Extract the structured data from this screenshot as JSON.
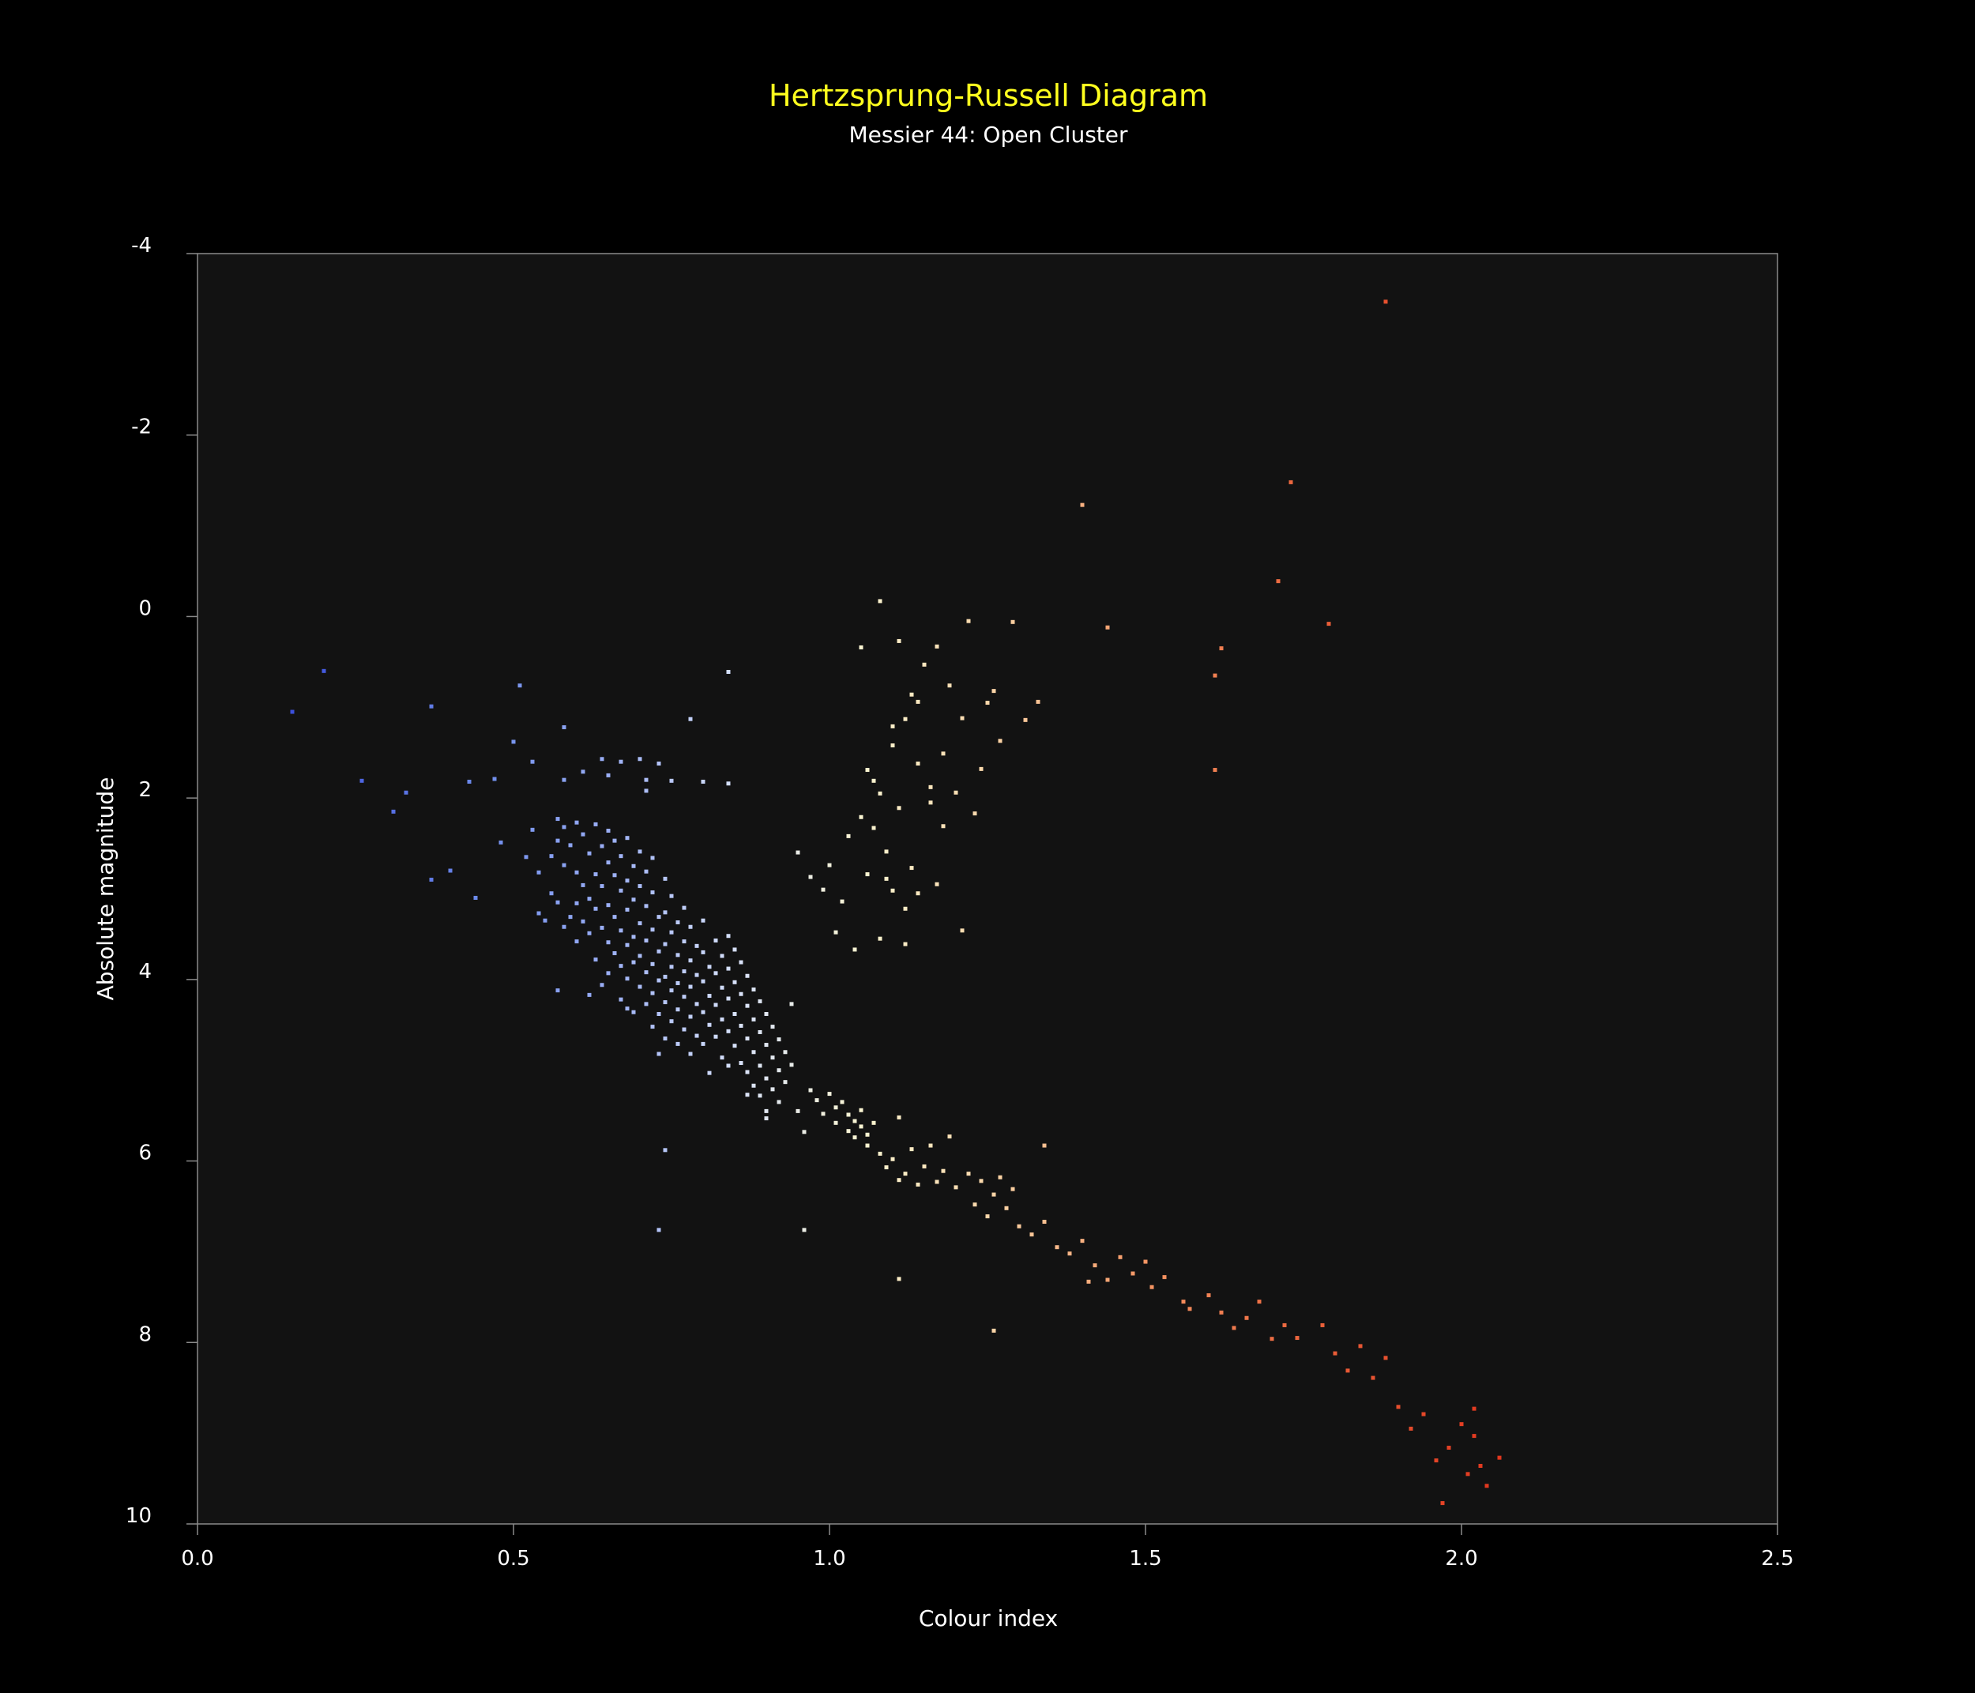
{
  "chart_data": {
    "type": "scatter",
    "title": "Hertzsprung-Russell Diagram",
    "subtitle": "Messier 44: Open Cluster",
    "xlabel": "Colour index",
    "ylabel": "Absolute magnitude",
    "xlim": [
      0.0,
      2.5
    ],
    "ylim": [
      -4,
      10
    ],
    "y_inverted": true,
    "grid": false,
    "legend": "none",
    "x_ticks": [
      "0.0",
      "0.5",
      "1.0",
      "1.5",
      "2.0",
      "2.5"
    ],
    "y_ticks": [
      "-4",
      "-2",
      "0",
      "2",
      "4",
      "6",
      "8",
      "10"
    ],
    "colors": {
      "background": "#000000",
      "plot_background": "#121212",
      "title": "#ffff1e",
      "text": "#ffffff",
      "axis": "#8a8a8a"
    },
    "points": [
      [
        0.15,
        1.05
      ],
      [
        0.2,
        0.6
      ],
      [
        0.26,
        1.81
      ],
      [
        0.31,
        2.15
      ],
      [
        0.33,
        1.94
      ],
      [
        0.37,
        0.99
      ],
      [
        0.37,
        2.9
      ],
      [
        0.4,
        2.8
      ],
      [
        0.43,
        1.82
      ],
      [
        0.44,
        3.1
      ],
      [
        0.47,
        1.79
      ],
      [
        0.48,
        2.49
      ],
      [
        0.51,
        0.76
      ],
      [
        0.5,
        1.38
      ],
      [
        0.53,
        1.6
      ],
      [
        0.58,
        1.8
      ],
      [
        0.58,
        1.22
      ],
      [
        0.61,
        1.71
      ],
      [
        0.64,
        1.57
      ],
      [
        0.65,
        1.75
      ],
      [
        0.67,
        1.6
      ],
      [
        0.7,
        1.57
      ],
      [
        0.71,
        1.8
      ],
      [
        0.73,
        1.62
      ],
      [
        0.75,
        1.81
      ],
      [
        0.78,
        1.13
      ],
      [
        0.8,
        1.82
      ],
      [
        0.84,
        0.61
      ],
      [
        0.84,
        1.84
      ],
      [
        0.71,
        1.92
      ],
      [
        0.52,
        2.65
      ],
      [
        0.53,
        2.35
      ],
      [
        0.54,
        2.82
      ],
      [
        0.54,
        3.27
      ],
      [
        0.55,
        3.35
      ],
      [
        0.56,
        2.64
      ],
      [
        0.56,
        3.05
      ],
      [
        0.57,
        2.23
      ],
      [
        0.57,
        2.47
      ],
      [
        0.57,
        3.15
      ],
      [
        0.58,
        2.32
      ],
      [
        0.58,
        2.74
      ],
      [
        0.58,
        3.42
      ],
      [
        0.59,
        2.52
      ],
      [
        0.59,
        3.31
      ],
      [
        0.6,
        2.27
      ],
      [
        0.6,
        2.82
      ],
      [
        0.6,
        3.16
      ],
      [
        0.6,
        3.58
      ],
      [
        0.61,
        2.4
      ],
      [
        0.61,
        2.96
      ],
      [
        0.61,
        3.36
      ],
      [
        0.62,
        2.61
      ],
      [
        0.62,
        3.11
      ],
      [
        0.62,
        3.49
      ],
      [
        0.63,
        2.29
      ],
      [
        0.63,
        2.84
      ],
      [
        0.63,
        3.22
      ],
      [
        0.63,
        3.78
      ],
      [
        0.64,
        2.53
      ],
      [
        0.64,
        2.97
      ],
      [
        0.64,
        3.43
      ],
      [
        0.64,
        4.06
      ],
      [
        0.65,
        2.36
      ],
      [
        0.65,
        2.71
      ],
      [
        0.65,
        3.18
      ],
      [
        0.65,
        3.59
      ],
      [
        0.65,
        3.93
      ],
      [
        0.66,
        2.47
      ],
      [
        0.66,
        2.85
      ],
      [
        0.66,
        3.31
      ],
      [
        0.66,
        3.71
      ],
      [
        0.67,
        2.64
      ],
      [
        0.67,
        3.02
      ],
      [
        0.67,
        3.46
      ],
      [
        0.67,
        3.85
      ],
      [
        0.67,
        4.22
      ],
      [
        0.68,
        2.44
      ],
      [
        0.68,
        2.91
      ],
      [
        0.68,
        3.23
      ],
      [
        0.68,
        3.62
      ],
      [
        0.68,
        3.99
      ],
      [
        0.69,
        2.75
      ],
      [
        0.69,
        3.12
      ],
      [
        0.69,
        3.53
      ],
      [
        0.69,
        3.81
      ],
      [
        0.69,
        4.36
      ],
      [
        0.7,
        2.59
      ],
      [
        0.7,
        2.97
      ],
      [
        0.7,
        3.38
      ],
      [
        0.7,
        3.74
      ],
      [
        0.7,
        4.08
      ],
      [
        0.71,
        2.81
      ],
      [
        0.71,
        3.19
      ],
      [
        0.71,
        3.57
      ],
      [
        0.71,
        3.92
      ],
      [
        0.71,
        4.27
      ],
      [
        0.72,
        2.66
      ],
      [
        0.72,
        3.04
      ],
      [
        0.72,
        3.45
      ],
      [
        0.72,
        3.83
      ],
      [
        0.72,
        4.15
      ],
      [
        0.72,
        4.52
      ],
      [
        0.73,
        3.31
      ],
      [
        0.73,
        3.69
      ],
      [
        0.73,
        4.01
      ],
      [
        0.73,
        4.38
      ],
      [
        0.74,
        2.89
      ],
      [
        0.74,
        3.26
      ],
      [
        0.74,
        3.61
      ],
      [
        0.74,
        3.97
      ],
      [
        0.74,
        4.25
      ],
      [
        0.74,
        4.65
      ],
      [
        0.75,
        3.08
      ],
      [
        0.75,
        3.48
      ],
      [
        0.75,
        3.86
      ],
      [
        0.75,
        4.12
      ],
      [
        0.75,
        4.46
      ],
      [
        0.76,
        3.37
      ],
      [
        0.76,
        3.73
      ],
      [
        0.76,
        4.04
      ],
      [
        0.76,
        4.33
      ],
      [
        0.76,
        4.71
      ],
      [
        0.77,
        3.21
      ],
      [
        0.77,
        3.58
      ],
      [
        0.77,
        3.91
      ],
      [
        0.77,
        4.19
      ],
      [
        0.77,
        4.55
      ],
      [
        0.78,
        3.42
      ],
      [
        0.78,
        3.79
      ],
      [
        0.78,
        4.08
      ],
      [
        0.78,
        4.41
      ],
      [
        0.78,
        4.82
      ],
      [
        0.79,
        3.63
      ],
      [
        0.79,
        3.95
      ],
      [
        0.79,
        4.27
      ],
      [
        0.79,
        4.62
      ],
      [
        0.8,
        3.35
      ],
      [
        0.8,
        3.7
      ],
      [
        0.8,
        4.02
      ],
      [
        0.8,
        4.36
      ],
      [
        0.8,
        4.71
      ],
      [
        0.81,
        3.86
      ],
      [
        0.81,
        4.18
      ],
      [
        0.81,
        4.5
      ],
      [
        0.82,
        3.57
      ],
      [
        0.82,
        3.93
      ],
      [
        0.82,
        4.28
      ],
      [
        0.82,
        4.63
      ],
      [
        0.83,
        3.74
      ],
      [
        0.83,
        4.09
      ],
      [
        0.83,
        4.44
      ],
      [
        0.83,
        4.86
      ],
      [
        0.84,
        3.52
      ],
      [
        0.84,
        3.88
      ],
      [
        0.84,
        4.21
      ],
      [
        0.84,
        4.57
      ],
      [
        0.85,
        3.67
      ],
      [
        0.85,
        4.03
      ],
      [
        0.85,
        4.38
      ],
      [
        0.85,
        4.73
      ],
      [
        0.86,
        3.81
      ],
      [
        0.86,
        4.16
      ],
      [
        0.86,
        4.51
      ],
      [
        0.86,
        4.92
      ],
      [
        0.87,
        3.96
      ],
      [
        0.87,
        4.29
      ],
      [
        0.87,
        4.65
      ],
      [
        0.87,
        5.02
      ],
      [
        0.88,
        4.11
      ],
      [
        0.88,
        4.44
      ],
      [
        0.88,
        4.8
      ],
      [
        0.88,
        5.17
      ],
      [
        0.89,
        4.24
      ],
      [
        0.89,
        4.58
      ],
      [
        0.89,
        4.95
      ],
      [
        0.89,
        5.28
      ],
      [
        0.9,
        4.38
      ],
      [
        0.9,
        4.72
      ],
      [
        0.9,
        5.09
      ],
      [
        0.9,
        5.45
      ],
      [
        0.91,
        4.52
      ],
      [
        0.91,
        4.86
      ],
      [
        0.91,
        5.21
      ],
      [
        0.92,
        4.66
      ],
      [
        0.92,
        5.0
      ],
      [
        0.92,
        5.35
      ],
      [
        0.93,
        4.8
      ],
      [
        0.93,
        5.13
      ],
      [
        0.94,
        4.27
      ],
      [
        0.94,
        4.94
      ],
      [
        0.57,
        4.12
      ],
      [
        0.62,
        4.17
      ],
      [
        0.68,
        4.32
      ],
      [
        0.73,
        4.82
      ],
      [
        0.81,
        5.03
      ],
      [
        0.87,
        5.27
      ],
      [
        0.9,
        5.53
      ],
      [
        0.84,
        4.95
      ],
      [
        0.95,
        5.45
      ],
      [
        0.97,
        5.22
      ],
      [
        0.96,
        5.68
      ],
      [
        0.98,
        5.33
      ],
      [
        0.99,
        5.48
      ],
      [
        1.0,
        5.26
      ],
      [
        1.01,
        5.41
      ],
      [
        1.01,
        5.58
      ],
      [
        1.02,
        5.35
      ],
      [
        1.03,
        5.67
      ],
      [
        1.03,
        5.49
      ],
      [
        1.04,
        5.56
      ],
      [
        1.04,
        5.74
      ],
      [
        1.05,
        5.62
      ],
      [
        1.05,
        5.44
      ],
      [
        1.06,
        5.71
      ],
      [
        1.06,
        5.83
      ],
      [
        1.07,
        5.58
      ],
      [
        1.08,
        5.92
      ],
      [
        1.09,
        6.07
      ],
      [
        1.1,
        5.98
      ],
      [
        1.11,
        6.21
      ],
      [
        1.11,
        5.52
      ],
      [
        1.12,
        6.14
      ],
      [
        1.13,
        5.87
      ],
      [
        1.14,
        6.26
      ],
      [
        1.15,
        6.06
      ],
      [
        1.16,
        5.83
      ],
      [
        1.17,
        6.23
      ],
      [
        1.18,
        6.11
      ],
      [
        1.19,
        5.73
      ],
      [
        1.2,
        6.29
      ],
      [
        1.22,
        6.14
      ],
      [
        1.23,
        6.48
      ],
      [
        1.24,
        6.22
      ],
      [
        1.25,
        6.61
      ],
      [
        1.26,
        6.37
      ],
      [
        1.27,
        6.18
      ],
      [
        1.28,
        6.52
      ],
      [
        1.29,
        6.31
      ],
      [
        1.3,
        6.72
      ],
      [
        1.32,
        6.81
      ],
      [
        1.34,
        6.67
      ],
      [
        1.36,
        6.95
      ],
      [
        1.38,
        7.02
      ],
      [
        1.4,
        6.88
      ],
      [
        1.42,
        7.15
      ],
      [
        1.44,
        7.31
      ],
      [
        1.46,
        7.06
      ],
      [
        1.48,
        7.24
      ],
      [
        1.5,
        7.11
      ],
      [
        1.51,
        7.39
      ],
      [
        1.53,
        7.28
      ],
      [
        1.57,
        7.63
      ],
      [
        1.6,
        7.48
      ],
      [
        1.62,
        7.67
      ],
      [
        1.64,
        7.84
      ],
      [
        1.66,
        7.73
      ],
      [
        1.68,
        7.55
      ],
      [
        1.7,
        7.96
      ],
      [
        1.72,
        7.81
      ],
      [
        1.74,
        7.95
      ],
      [
        1.78,
        7.81
      ],
      [
        1.8,
        8.12
      ],
      [
        1.82,
        8.31
      ],
      [
        1.84,
        8.04
      ],
      [
        1.86,
        8.39
      ],
      [
        1.88,
        8.17
      ],
      [
        1.9,
        8.71
      ],
      [
        1.92,
        8.95
      ],
      [
        1.94,
        8.79
      ],
      [
        1.96,
        9.3
      ],
      [
        1.98,
        9.16
      ],
      [
        2.0,
        8.9
      ],
      [
        2.01,
        9.45
      ],
      [
        2.02,
        9.03
      ],
      [
        2.03,
        9.36
      ],
      [
        2.04,
        9.58
      ],
      [
        2.02,
        8.73
      ],
      [
        1.97,
        9.77
      ],
      [
        2.06,
        9.27
      ],
      [
        0.74,
        5.88
      ],
      [
        0.73,
        6.76
      ],
      [
        0.96,
        6.76
      ],
      [
        1.11,
        7.3
      ],
      [
        1.26,
        7.87
      ],
      [
        1.34,
        5.83
      ],
      [
        1.41,
        7.33
      ],
      [
        1.56,
        7.55
      ],
      [
        0.95,
        2.6
      ],
      [
        0.97,
        2.87
      ],
      [
        0.99,
        3.01
      ],
      [
        1.0,
        2.74
      ],
      [
        1.01,
        3.48
      ],
      [
        1.02,
        3.14
      ],
      [
        1.03,
        2.42
      ],
      [
        1.04,
        3.67
      ],
      [
        1.05,
        2.21
      ],
      [
        1.06,
        2.84
      ],
      [
        1.06,
        1.69
      ],
      [
        1.07,
        2.33
      ],
      [
        1.08,
        3.55
      ],
      [
        1.08,
        1.95
      ],
      [
        1.09,
        2.59
      ],
      [
        1.1,
        1.42
      ],
      [
        1.1,
        3.02
      ],
      [
        1.11,
        2.11
      ],
      [
        1.12,
        1.13
      ],
      [
        1.13,
        2.77
      ],
      [
        1.14,
        1.62
      ],
      [
        1.15,
        0.53
      ],
      [
        1.16,
        1.88
      ],
      [
        1.17,
        0.33
      ],
      [
        1.18,
        1.51
      ],
      [
        1.19,
        0.76
      ],
      [
        1.2,
        1.94
      ],
      [
        1.21,
        1.12
      ],
      [
        1.22,
        0.05
      ],
      [
        1.23,
        2.17
      ],
      [
        1.24,
        1.68
      ],
      [
        1.25,
        0.95
      ],
      [
        1.26,
        0.82
      ],
      [
        1.27,
        1.37
      ],
      [
        1.29,
        0.06
      ],
      [
        1.31,
        1.14
      ],
      [
        1.33,
        0.94
      ],
      [
        1.09,
        2.89
      ],
      [
        1.12,
        3.22
      ],
      [
        1.14,
        0.94
      ],
      [
        1.17,
        2.95
      ],
      [
        1.21,
        3.46
      ],
      [
        1.08,
        -0.17
      ],
      [
        1.05,
        0.34
      ],
      [
        1.1,
        1.21
      ],
      [
        1.12,
        3.61
      ],
      [
        1.14,
        3.05
      ],
      [
        1.16,
        2.05
      ],
      [
        1.18,
        2.31
      ],
      [
        1.07,
        1.81
      ],
      [
        1.11,
        0.27
      ],
      [
        1.13,
        0.86
      ],
      [
        1.4,
        -1.23
      ],
      [
        1.44,
        0.12
      ],
      [
        1.61,
        0.65
      ],
      [
        1.62,
        0.35
      ],
      [
        1.61,
        1.69
      ],
      [
        1.71,
        -0.39
      ],
      [
        1.73,
        -1.48
      ],
      [
        1.79,
        0.08
      ],
      [
        1.88,
        -3.47
      ]
    ]
  }
}
